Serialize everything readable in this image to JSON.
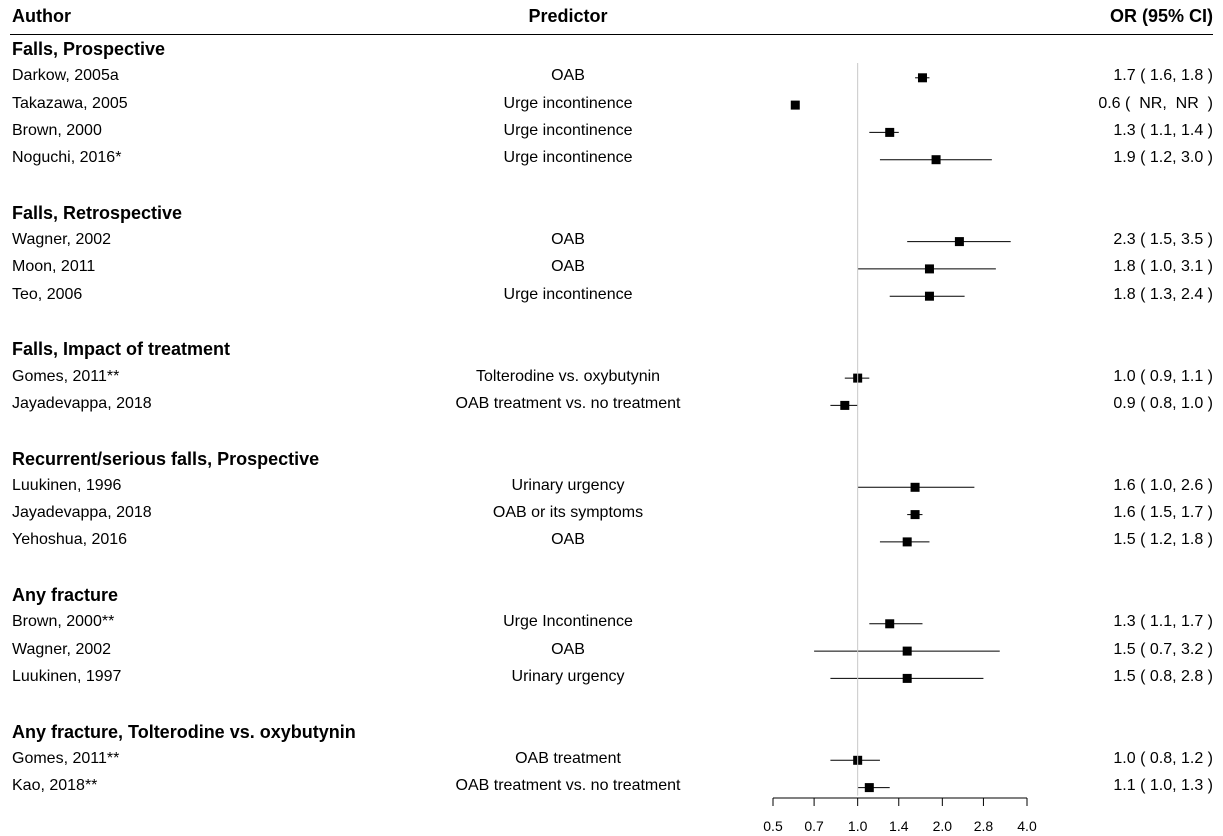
{
  "headers": {
    "author": "Author",
    "predictor": "Predictor",
    "or": "OR (95% CI)"
  },
  "chart_data": {
    "type": "forest",
    "scale": "log",
    "reference_line": 1.0,
    "xlim": [
      0.5,
      4.0
    ],
    "ticks": [
      0.5,
      0.7,
      1.0,
      1.4,
      2.0,
      2.8,
      4.0
    ],
    "tick_labels": [
      "0.5",
      "0.7",
      "1.0",
      "1.4",
      "2.0",
      "2.8",
      "4.0"
    ],
    "groups": [
      {
        "name": "Falls, Prospective",
        "studies": [
          {
            "author": "Darkow, 2005a",
            "predictor": "OAB",
            "or": 1.7,
            "lo": 1.6,
            "hi": 1.8,
            "label": "1.7 ( 1.6, 1.8 )"
          },
          {
            "author": "Takazawa, 2005",
            "predictor": "Urge incontinence",
            "or": 0.6,
            "lo": null,
            "hi": null,
            "label": "0.6 (  NR,  NR  )"
          },
          {
            "author": "Brown, 2000",
            "predictor": "Urge incontinence",
            "or": 1.3,
            "lo": 1.1,
            "hi": 1.4,
            "label": "1.3 ( 1.1, 1.4 )"
          },
          {
            "author": "Noguchi, 2016*",
            "predictor": "Urge incontinence",
            "or": 1.9,
            "lo": 1.2,
            "hi": 3.0,
            "label": "1.9 ( 1.2, 3.0 )"
          }
        ]
      },
      {
        "name": "Falls, Retrospective",
        "studies": [
          {
            "author": "Wagner, 2002",
            "predictor": "OAB",
            "or": 2.3,
            "lo": 1.5,
            "hi": 3.5,
            "label": "2.3 ( 1.5, 3.5 )"
          },
          {
            "author": "Moon, 2011",
            "predictor": "OAB",
            "or": 1.8,
            "lo": 1.0,
            "hi": 3.1,
            "label": "1.8 ( 1.0, 3.1 )"
          },
          {
            "author": "Teo, 2006",
            "predictor": "Urge incontinence",
            "or": 1.8,
            "lo": 1.3,
            "hi": 2.4,
            "label": "1.8 ( 1.3, 2.4 )"
          }
        ]
      },
      {
        "name": "Falls, Impact of treatment",
        "studies": [
          {
            "author": "Gomes, 2011**",
            "predictor": "Tolterodine vs. oxybutynin",
            "or": 1.0,
            "lo": 0.9,
            "hi": 1.1,
            "label": "1.0 ( 0.9, 1.1 )"
          },
          {
            "author": "Jayadevappa, 2018",
            "predictor": "OAB treatment vs. no treatment",
            "or": 0.9,
            "lo": 0.8,
            "hi": 1.0,
            "label": "0.9 ( 0.8, 1.0 )"
          }
        ]
      },
      {
        "name": "Recurrent/serious falls, Prospective",
        "studies": [
          {
            "author": "Luukinen, 1996",
            "predictor": "Urinary urgency",
            "or": 1.6,
            "lo": 1.0,
            "hi": 2.6,
            "label": "1.6 ( 1.0, 2.6 )"
          },
          {
            "author": "Jayadevappa, 2018",
            "predictor": "OAB or its symptoms",
            "or": 1.6,
            "lo": 1.5,
            "hi": 1.7,
            "label": "1.6 ( 1.5, 1.7 )"
          },
          {
            "author": "Yehoshua, 2016",
            "predictor": "OAB",
            "or": 1.5,
            "lo": 1.2,
            "hi": 1.8,
            "label": "1.5 ( 1.2, 1.8 )"
          }
        ]
      },
      {
        "name": "Any fracture",
        "studies": [
          {
            "author": "Brown, 2000**",
            "predictor": "Urge Incontinence",
            "or": 1.3,
            "lo": 1.1,
            "hi": 1.7,
            "label": "1.3 ( 1.1, 1.7 )"
          },
          {
            "author": "Wagner, 2002",
            "predictor": "OAB",
            "or": 1.5,
            "lo": 0.7,
            "hi": 3.2,
            "label": "1.5 ( 0.7, 3.2 )"
          },
          {
            "author": "Luukinen, 1997",
            "predictor": "Urinary urgency",
            "or": 1.5,
            "lo": 0.8,
            "hi": 2.8,
            "label": "1.5 ( 0.8, 2.8 )"
          }
        ]
      },
      {
        "name": "Any fracture, Tolterodine vs. oxybutynin",
        "studies": [
          {
            "author": "Gomes, 2011**",
            "predictor": "OAB treatment",
            "or": 1.0,
            "lo": 0.8,
            "hi": 1.2,
            "label": "1.0 ( 0.8, 1.2 )"
          },
          {
            "author": "Kao, 2018**",
            "predictor": "OAB treatment vs. no treatment",
            "or": 1.1,
            "lo": 1.0,
            "hi": 1.3,
            "label": "1.1 ( 1.0, 1.3 )"
          }
        ]
      }
    ]
  }
}
